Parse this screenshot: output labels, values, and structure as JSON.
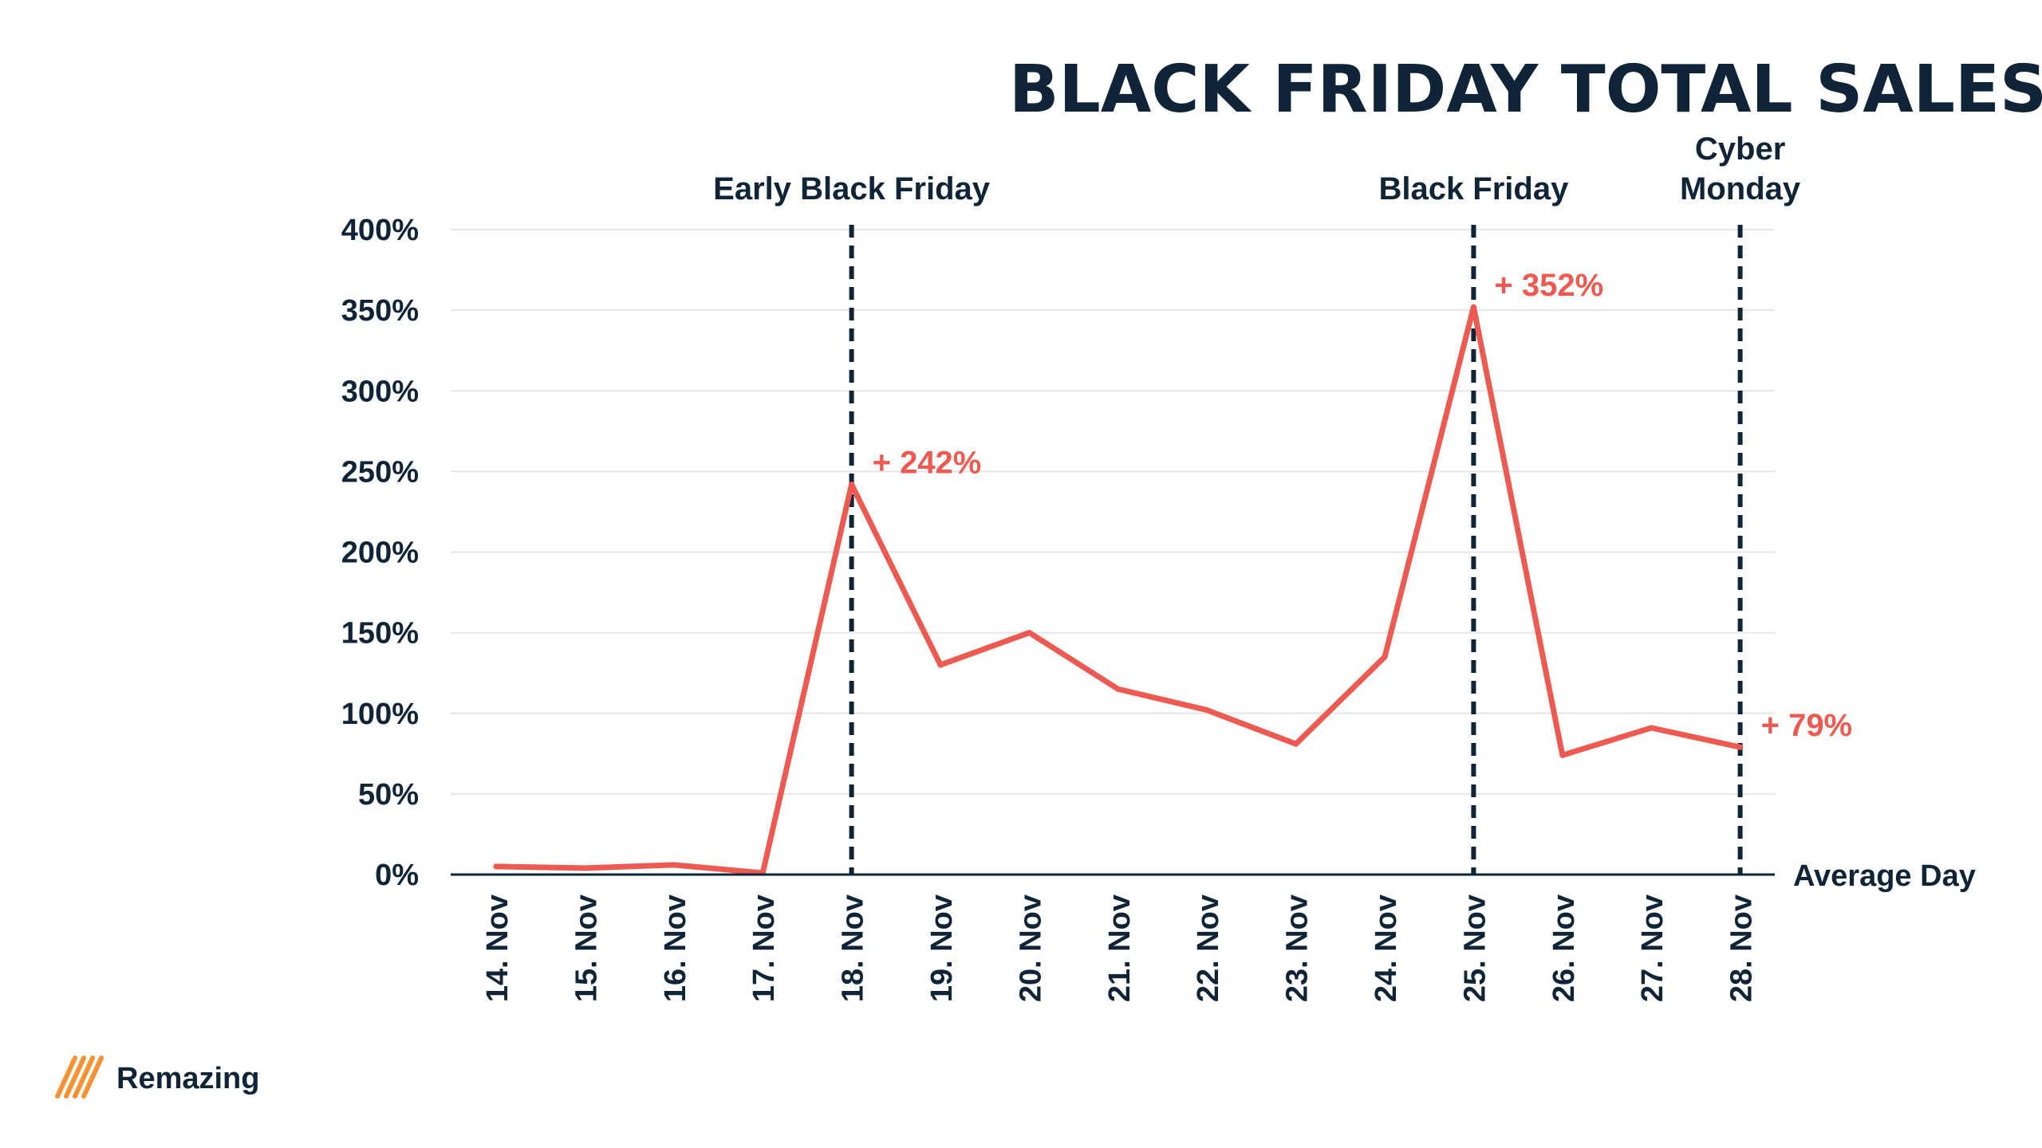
{
  "colors": {
    "navy": "#0f2537",
    "accent": "#ec5a52",
    "grid": "#e6e6e6",
    "logo_gradient": [
      "#f7b43c",
      "#f0702e"
    ]
  },
  "brand": {
    "name": "Remazing",
    "icon": "remazing-stripes-logo-icon"
  },
  "chart_data": {
    "type": "line",
    "title": "BLACK FRIDAY TOTAL SALES",
    "title_suffix": ".",
    "xlabel": "",
    "ylabel": "",
    "categories": [
      "14. Nov",
      "15. Nov",
      "16. Nov",
      "17. Nov",
      "18. Nov",
      "19. Nov",
      "20. Nov",
      "21. Nov",
      "22. Nov",
      "23. Nov",
      "24. Nov",
      "25. Nov",
      "26. Nov",
      "27. Nov",
      "28. Nov"
    ],
    "series": [
      {
        "values": [
          5,
          4,
          6,
          1,
          242,
          130,
          150,
          115,
          102,
          81,
          135,
          352,
          74,
          91,
          79
        ]
      }
    ],
    "ylim": [
      0,
      400
    ],
    "yticks": [
      0,
      50,
      100,
      150,
      200,
      250,
      300,
      350,
      400
    ],
    "ytick_labels": [
      "0%",
      "50%",
      "100%",
      "150%",
      "200%",
      "250%",
      "300%",
      "350%",
      "400%"
    ],
    "baseline_label": "Average Day",
    "grid": true,
    "legend": "none",
    "events": [
      {
        "category": "18. Nov",
        "label": [
          "Early Black Friday"
        ]
      },
      {
        "category": "25. Nov",
        "label": [
          "Black Friday"
        ]
      },
      {
        "category": "28. Nov",
        "label": [
          "Cyber",
          "Monday"
        ]
      }
    ],
    "annotations": [
      {
        "category": "18. Nov",
        "text": "+ 242%"
      },
      {
        "category": "25. Nov",
        "text": "+ 352%"
      },
      {
        "category": "28. Nov",
        "text": "+ 79%"
      }
    ]
  }
}
